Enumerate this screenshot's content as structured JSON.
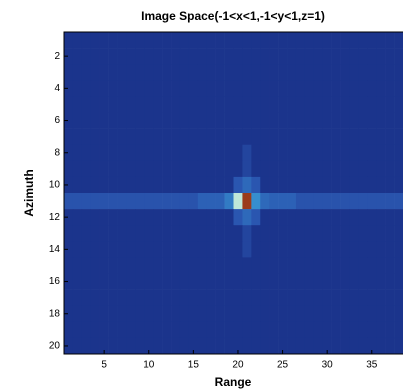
{
  "chart_data": {
    "type": "heatmap",
    "title": "Image Space(-1<x<1,-1<y<1,z=1)",
    "xlabel": "Range",
    "ylabel": "Azimuth",
    "xlim": [
      0.5,
      38.5
    ],
    "ylim": [
      20.5,
      0.5
    ],
    "xticks": [
      5,
      10,
      15,
      20,
      25,
      30,
      35
    ],
    "yticks": [
      2,
      4,
      6,
      8,
      10,
      12,
      14,
      16,
      18,
      20
    ],
    "clim": [
      0,
      100
    ],
    "colormap": [
      [
        0,
        "#14237a"
      ],
      [
        15,
        "#2a56b0"
      ],
      [
        35,
        "#3aa0d8"
      ],
      [
        55,
        "#bfe8d8"
      ],
      [
        75,
        "#e0c040"
      ],
      [
        100,
        "#8a1a10"
      ]
    ],
    "z": [
      [
        5,
        5,
        5,
        5,
        5,
        5,
        5,
        5,
        5,
        5,
        5,
        5,
        5,
        5,
        5,
        5,
        5,
        5,
        5,
        5,
        5,
        5,
        5,
        5,
        5,
        5,
        5,
        5,
        5,
        5,
        5,
        5,
        5,
        5,
        5,
        5,
        5,
        5
      ],
      [
        5,
        5,
        5,
        5,
        5,
        5,
        5,
        5,
        5,
        5,
        5,
        5,
        5,
        5,
        5,
        5,
        5,
        5,
        5,
        5,
        5,
        5,
        5,
        5,
        5,
        5,
        5,
        5,
        5,
        5,
        5,
        5,
        5,
        5,
        5,
        5,
        5,
        5
      ],
      [
        5,
        5,
        5,
        5,
        5,
        5,
        5,
        5,
        5,
        5,
        5,
        5,
        5,
        5,
        5,
        5,
        5,
        5,
        5,
        5,
        5,
        5,
        5,
        5,
        5,
        5,
        5,
        5,
        5,
        5,
        5,
        5,
        5,
        5,
        5,
        5,
        5,
        5
      ],
      [
        5,
        5,
        5,
        5,
        5,
        5,
        5,
        5,
        5,
        5,
        5,
        5,
        5,
        5,
        5,
        5,
        5,
        5,
        5,
        5,
        5,
        5,
        5,
        5,
        5,
        5,
        5,
        5,
        5,
        5,
        5,
        5,
        5,
        5,
        5,
        5,
        5,
        5
      ],
      [
        5,
        5,
        5,
        5,
        5,
        5,
        5,
        5,
        5,
        5,
        5,
        5,
        5,
        5,
        5,
        5,
        5,
        5,
        5,
        5,
        5,
        5,
        5,
        5,
        5,
        5,
        5,
        5,
        5,
        5,
        5,
        5,
        5,
        5,
        5,
        5,
        5,
        5
      ],
      [
        5,
        5,
        5,
        5,
        5,
        5,
        5,
        5,
        5,
        5,
        5,
        5,
        5,
        5,
        5,
        5,
        5,
        5,
        5,
        5,
        5,
        5,
        5,
        5,
        5,
        5,
        5,
        5,
        5,
        5,
        5,
        5,
        5,
        5,
        5,
        5,
        5,
        5
      ],
      [
        5,
        5,
        5,
        5,
        5,
        5,
        5,
        5,
        5,
        5,
        5,
        5,
        5,
        5,
        5,
        5,
        5,
        5,
        5,
        5,
        5,
        5,
        5,
        5,
        5,
        5,
        5,
        5,
        5,
        5,
        5,
        5,
        5,
        5,
        5,
        5,
        5,
        5
      ],
      [
        5,
        5,
        5,
        5,
        5,
        5,
        5,
        5,
        5,
        5,
        5,
        5,
        5,
        5,
        5,
        5,
        5,
        5,
        5,
        5,
        10,
        5,
        5,
        5,
        5,
        5,
        5,
        5,
        5,
        5,
        5,
        5,
        5,
        5,
        5,
        5,
        5,
        5
      ],
      [
        5,
        5,
        5,
        5,
        5,
        5,
        5,
        5,
        5,
        5,
        5,
        5,
        5,
        5,
        5,
        5,
        5,
        5,
        5,
        5,
        10,
        5,
        5,
        5,
        5,
        5,
        5,
        5,
        5,
        5,
        5,
        5,
        5,
        5,
        5,
        5,
        5,
        5
      ],
      [
        5,
        5,
        5,
        5,
        5,
        5,
        5,
        5,
        5,
        5,
        5,
        5,
        5,
        5,
        5,
        5,
        5,
        5,
        5,
        15,
        20,
        15,
        5,
        5,
        5,
        5,
        5,
        5,
        5,
        5,
        5,
        5,
        5,
        5,
        5,
        5,
        5,
        5
      ],
      [
        14,
        14,
        14,
        14,
        14,
        14,
        14,
        14,
        14,
        14,
        14,
        14,
        14,
        14,
        14,
        18,
        18,
        18,
        25,
        55,
        95,
        30,
        20,
        18,
        18,
        18,
        14,
        14,
        14,
        14,
        14,
        14,
        14,
        14,
        14,
        14,
        14,
        14
      ],
      [
        5,
        5,
        5,
        5,
        5,
        5,
        5,
        5,
        5,
        5,
        5,
        5,
        5,
        5,
        5,
        5,
        5,
        5,
        5,
        15,
        20,
        15,
        5,
        5,
        5,
        5,
        5,
        5,
        5,
        5,
        5,
        5,
        5,
        5,
        5,
        5,
        5,
        5
      ],
      [
        5,
        5,
        5,
        5,
        5,
        5,
        5,
        5,
        5,
        5,
        5,
        5,
        5,
        5,
        5,
        5,
        5,
        5,
        5,
        5,
        10,
        5,
        5,
        5,
        5,
        5,
        5,
        5,
        5,
        5,
        5,
        5,
        5,
        5,
        5,
        5,
        5,
        5
      ],
      [
        5,
        5,
        5,
        5,
        5,
        5,
        5,
        5,
        5,
        5,
        5,
        5,
        5,
        5,
        5,
        5,
        5,
        5,
        5,
        5,
        10,
        5,
        5,
        5,
        5,
        5,
        5,
        5,
        5,
        5,
        5,
        5,
        5,
        5,
        5,
        5,
        5,
        5
      ],
      [
        5,
        5,
        5,
        5,
        5,
        5,
        5,
        5,
        5,
        5,
        5,
        5,
        5,
        5,
        5,
        5,
        5,
        5,
        5,
        5,
        5,
        5,
        5,
        5,
        5,
        5,
        5,
        5,
        5,
        5,
        5,
        5,
        5,
        5,
        5,
        5,
        5,
        5
      ],
      [
        5,
        5,
        5,
        5,
        5,
        5,
        5,
        5,
        5,
        5,
        5,
        5,
        5,
        5,
        5,
        5,
        5,
        5,
        5,
        5,
        5,
        5,
        5,
        5,
        5,
        5,
        5,
        5,
        5,
        5,
        5,
        5,
        5,
        5,
        5,
        5,
        5,
        5
      ],
      [
        5,
        5,
        5,
        5,
        5,
        5,
        5,
        5,
        5,
        5,
        5,
        5,
        5,
        5,
        5,
        5,
        5,
        5,
        5,
        5,
        5,
        5,
        5,
        5,
        5,
        5,
        5,
        5,
        5,
        5,
        5,
        5,
        5,
        5,
        5,
        5,
        5,
        5
      ],
      [
        5,
        5,
        5,
        5,
        5,
        5,
        5,
        5,
        5,
        5,
        5,
        5,
        5,
        5,
        5,
        5,
        5,
        5,
        5,
        5,
        5,
        5,
        5,
        5,
        5,
        5,
        5,
        5,
        5,
        5,
        5,
        5,
        5,
        5,
        5,
        5,
        5,
        5
      ],
      [
        5,
        5,
        5,
        5,
        5,
        5,
        5,
        5,
        5,
        5,
        5,
        5,
        5,
        5,
        5,
        5,
        5,
        5,
        5,
        5,
        5,
        5,
        5,
        5,
        5,
        5,
        5,
        5,
        5,
        5,
        5,
        5,
        5,
        5,
        5,
        5,
        5,
        5
      ],
      [
        5,
        5,
        5,
        5,
        5,
        5,
        5,
        5,
        5,
        5,
        5,
        5,
        5,
        5,
        5,
        5,
        5,
        5,
        5,
        5,
        5,
        5,
        5,
        5,
        5,
        5,
        5,
        5,
        5,
        5,
        5,
        5,
        5,
        5,
        5,
        5,
        5,
        5
      ]
    ]
  }
}
